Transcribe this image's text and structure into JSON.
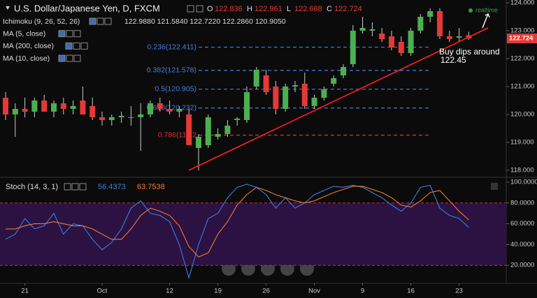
{
  "chart_data": [
    {
      "type": "candlestick",
      "title": "U.S. Dollar/Japanese Yen, D, FXCM",
      "ohlc_labels": [
        "O",
        "H",
        "L",
        "C"
      ],
      "indicators": [
        {
          "name": "Ichimoku (9, 26, 52, 26)",
          "readings": "122.9880 121.5840 122.7220 122.2860 120.9050"
        },
        {
          "name": "MA (5, close)"
        },
        {
          "name": "MA (200, close)"
        },
        {
          "name": "MA (10, close)"
        }
      ],
      "categories": [
        null,
        null,
        "21",
        null,
        null,
        null,
        null,
        null,
        null,
        null,
        "Oct",
        null,
        null,
        null,
        null,
        null,
        null,
        "12",
        null,
        null,
        null,
        null,
        "19",
        null,
        null,
        null,
        null,
        "26",
        null,
        null,
        null,
        null,
        "Nov",
        null,
        null,
        null,
        null,
        "9",
        null,
        null,
        null,
        null,
        "16",
        null,
        null,
        null,
        null,
        "23",
        null
      ],
      "open": [
        120.6,
        120.0,
        120.2,
        120.1,
        120.5,
        120.1,
        120.4,
        120.2,
        120.5,
        120.3,
        119.9,
        119.8,
        119.9,
        119.9,
        119.9,
        120.0,
        120.4,
        120.2,
        120.1,
        120.0,
        118.8,
        118.9,
        119.2,
        119.3,
        119.8,
        119.8,
        121.0,
        121.4,
        121.0,
        120.2,
        121.0,
        121.1,
        120.3,
        120.6,
        121.1,
        121.4,
        121.8,
        123.0,
        123.0,
        122.9,
        122.8,
        122.6,
        122.2,
        123.0,
        123.5,
        123.7,
        122.8,
        122.75,
        122.836
      ],
      "high": [
        120.8,
        120.4,
        120.6,
        120.6,
        120.7,
        120.5,
        120.6,
        120.5,
        121.0,
        120.6,
        120.1,
        120.0,
        120.1,
        120.3,
        120.4,
        120.5,
        120.6,
        120.5,
        120.3,
        120.2,
        119.3,
        120.0,
        119.5,
        119.8,
        119.9,
        121.0,
        121.7,
        121.6,
        121.2,
        121.1,
        121.2,
        121.5,
        120.7,
        121.0,
        121.4,
        121.8,
        123.2,
        123.5,
        123.3,
        123.1,
        123.0,
        122.8,
        123.1,
        123.6,
        123.8,
        123.8,
        123.0,
        123.1,
        122.961
      ],
      "low": [
        119.8,
        119.2,
        119.9,
        119.9,
        120.1,
        119.9,
        120.0,
        120.0,
        120.0,
        119.8,
        119.6,
        119.6,
        119.7,
        119.6,
        118.7,
        119.9,
        120.1,
        120.0,
        119.9,
        118.9,
        118.0,
        118.8,
        119.1,
        119.2,
        119.6,
        119.7,
        120.9,
        120.7,
        120.0,
        120.1,
        120.8,
        120.2,
        120.2,
        120.5,
        121.0,
        121.3,
        121.7,
        122.9,
        122.8,
        122.6,
        122.3,
        122.1,
        122.1,
        122.9,
        123.3,
        122.7,
        122.6,
        122.6,
        122.668
      ],
      "close": [
        120.0,
        120.2,
        120.1,
        120.5,
        120.1,
        120.4,
        120.2,
        120.3,
        120.0,
        119.9,
        119.8,
        119.9,
        119.95,
        119.9,
        120.0,
        120.4,
        120.2,
        120.1,
        120.2,
        118.9,
        119.2,
        119.9,
        119.3,
        119.6,
        119.85,
        120.8,
        121.6,
        120.8,
        120.2,
        121.0,
        121.05,
        120.3,
        120.6,
        120.9,
        121.3,
        121.7,
        123.0,
        123.1,
        123.05,
        122.7,
        122.4,
        122.2,
        123.0,
        123.5,
        123.7,
        122.8,
        122.7,
        122.8,
        122.724
      ],
      "up_color": "#4caf50",
      "down_color": "#e53935",
      "ylim": [
        117.8,
        124.1
      ],
      "yticks": [
        {
          "value": 118,
          "label": "118.000"
        },
        {
          "value": 119,
          "label": "119.000"
        },
        {
          "value": 120,
          "label": "120.000"
        },
        {
          "value": 121,
          "label": "121.000"
        },
        {
          "value": 122,
          "label": "122.000"
        },
        {
          "value": 123,
          "label": "123.000"
        },
        {
          "value": 124,
          "label": "124.000"
        }
      ],
      "fib_levels": [
        {
          "label": "0.236(122.411)",
          "value": 122.411,
          "color": "#4a7de0"
        },
        {
          "label": "0.382(121.578)",
          "value": 121.578,
          "color": "#4a7de0"
        },
        {
          "label": "0.5(120.905)",
          "value": 120.905,
          "color": "#4a7de0"
        },
        {
          "label": "0.618(120.232)",
          "value": 120.232,
          "color": "#4a7de0"
        },
        {
          "label": "0.786(119.2",
          "value": 119.26,
          "color": "#e0303a"
        }
      ],
      "trendline": {
        "x": [
          19,
          50
        ],
        "y": [
          118.0,
          123.1
        ],
        "color": "#ff2020"
      },
      "annotation": [
        "Buy dips around",
        "122.45"
      ],
      "status": "realtime"
    },
    {
      "type": "line",
      "title": "Stoch (14, 3, 1)",
      "series": [
        {
          "color": "#3a7ee0",
          "values": [
            45,
            50,
            65,
            55,
            58,
            70,
            50,
            60,
            58,
            45,
            35,
            42,
            55,
            75,
            82,
            70,
            68,
            62,
            40,
            8,
            40,
            65,
            70,
            85,
            95,
            98,
            95,
            88,
            75,
            85,
            75,
            80,
            88,
            92,
            96,
            95,
            97,
            95,
            90,
            85,
            78,
            72,
            80,
            95,
            97,
            75,
            68,
            65,
            56.4373
          ]
        },
        {
          "color": "#f07a30",
          "values": [
            55,
            55,
            58,
            60,
            60,
            62,
            60,
            58,
            58,
            55,
            50,
            45,
            45,
            55,
            68,
            75,
            72,
            68,
            58,
            38,
            28,
            32,
            50,
            62,
            78,
            88,
            95,
            92,
            88,
            85,
            82,
            80,
            82,
            86,
            90,
            93,
            96,
            96,
            93,
            90,
            85,
            78,
            76,
            82,
            90,
            92,
            82,
            72,
            63.7538
          ]
        }
      ],
      "ylim": [
        0,
        102
      ],
      "yticks": [
        {
          "value": 20,
          "label": "20.0000"
        },
        {
          "value": 40,
          "label": "40.0000"
        },
        {
          "value": 60,
          "label": "60.0000"
        },
        {
          "value": 80,
          "label": "80.0000"
        },
        {
          "value": 100,
          "label": "100.0000"
        }
      ],
      "band": [
        20,
        80
      ],
      "band_color": "#2b1242",
      "band_line_color": "#c03040"
    }
  ]
}
